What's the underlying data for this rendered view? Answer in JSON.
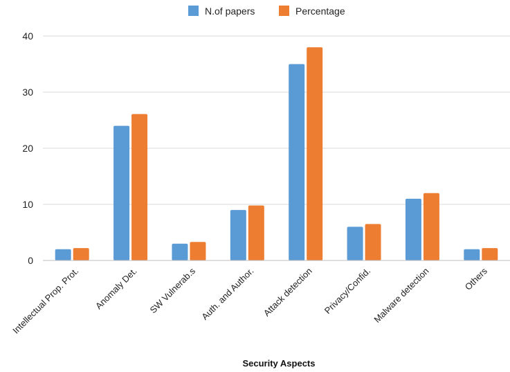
{
  "chart_data": {
    "type": "bar",
    "title": "",
    "xlabel": "Security Aspects",
    "ylabel": "",
    "ylim": [
      0,
      40
    ],
    "yticks": [
      0,
      10,
      20,
      30,
      40
    ],
    "grid": true,
    "legend_position": "top",
    "categories": [
      "Intellectual Prop. Prot.",
      "Anomaly Det.",
      "SW Vulnerab.s",
      "Auth. and Author.",
      "Attack detection",
      "Privacy/Confid.",
      "Malware detection",
      "Others"
    ],
    "series": [
      {
        "name": "N.of papers",
        "color": "#5b9bd5",
        "values": [
          2,
          24,
          3,
          9,
          35,
          6,
          11,
          2
        ]
      },
      {
        "name": "Percentage",
        "color": "#ed7d31",
        "values": [
          2.2,
          26.1,
          3.3,
          9.8,
          38,
          6.5,
          12,
          2.2
        ]
      }
    ]
  }
}
